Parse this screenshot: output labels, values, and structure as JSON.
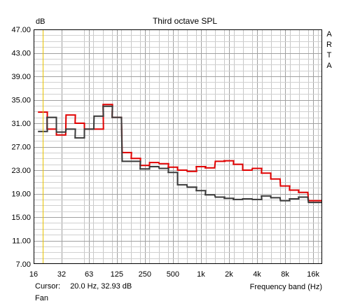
{
  "chart_data": {
    "type": "line",
    "title": "Third octave SPL",
    "ylabel": "dB",
    "xlabel": "Frequency band (Hz)",
    "watermark": "ARTA",
    "y_ticks": [
      "47.00",
      "43.00",
      "39.00",
      "35.00",
      "31.00",
      "27.00",
      "23.00",
      "19.00",
      "15.00",
      "11.00",
      "7.00"
    ],
    "ylim": [
      7,
      47
    ],
    "y_scale": "linear",
    "x_scale": "log",
    "xlim": [
      16,
      20000
    ],
    "x_tick_values": [
      16,
      32,
      63,
      125,
      250,
      500,
      1000,
      2000,
      4000,
      8000,
      16000
    ],
    "x_tick_labels": [
      "16",
      "32",
      "63",
      "125",
      "250",
      "500",
      "1k",
      "2k",
      "4k",
      "8k",
      "16k"
    ],
    "grid": true,
    "bands": [
      20,
      25,
      31.5,
      40,
      50,
      63,
      80,
      100,
      125,
      160,
      200,
      250,
      315,
      400,
      500,
      630,
      800,
      1000,
      1250,
      1600,
      2000,
      2500,
      3150,
      4000,
      5000,
      6300,
      8000,
      10000,
      12500,
      16000,
      20000
    ],
    "series": [
      {
        "color": "#e00000",
        "values": [
          32.9,
          30.0,
          29.0,
          32.4,
          31.0,
          30.0,
          30.0,
          34.2,
          32.0,
          26.0,
          25.0,
          23.8,
          24.3,
          24.1,
          23.5,
          23.0,
          22.8,
          23.6,
          23.4,
          24.5,
          24.6,
          24.0,
          23.0,
          23.3,
          22.5,
          21.5,
          20.3,
          19.6,
          19.2,
          17.8,
          17.8
        ]
      },
      {
        "color": "#3a3a3a",
        "values": [
          29.6,
          32.0,
          29.5,
          30.0,
          28.5,
          30.0,
          32.2,
          33.9,
          32.0,
          24.5,
          24.5,
          23.2,
          23.6,
          23.3,
          22.6,
          20.5,
          20.1,
          19.5,
          18.8,
          18.4,
          18.2,
          18.0,
          18.1,
          18.0,
          18.6,
          18.3,
          17.8,
          18.1,
          18.4,
          17.5,
          17.5
        ]
      }
    ],
    "cursor": {
      "label": "Cursor:",
      "value": "20.0 Hz, 32.93 dB",
      "x": 20,
      "color": "#e8c300"
    }
  },
  "status": {
    "fan": "Fan"
  }
}
